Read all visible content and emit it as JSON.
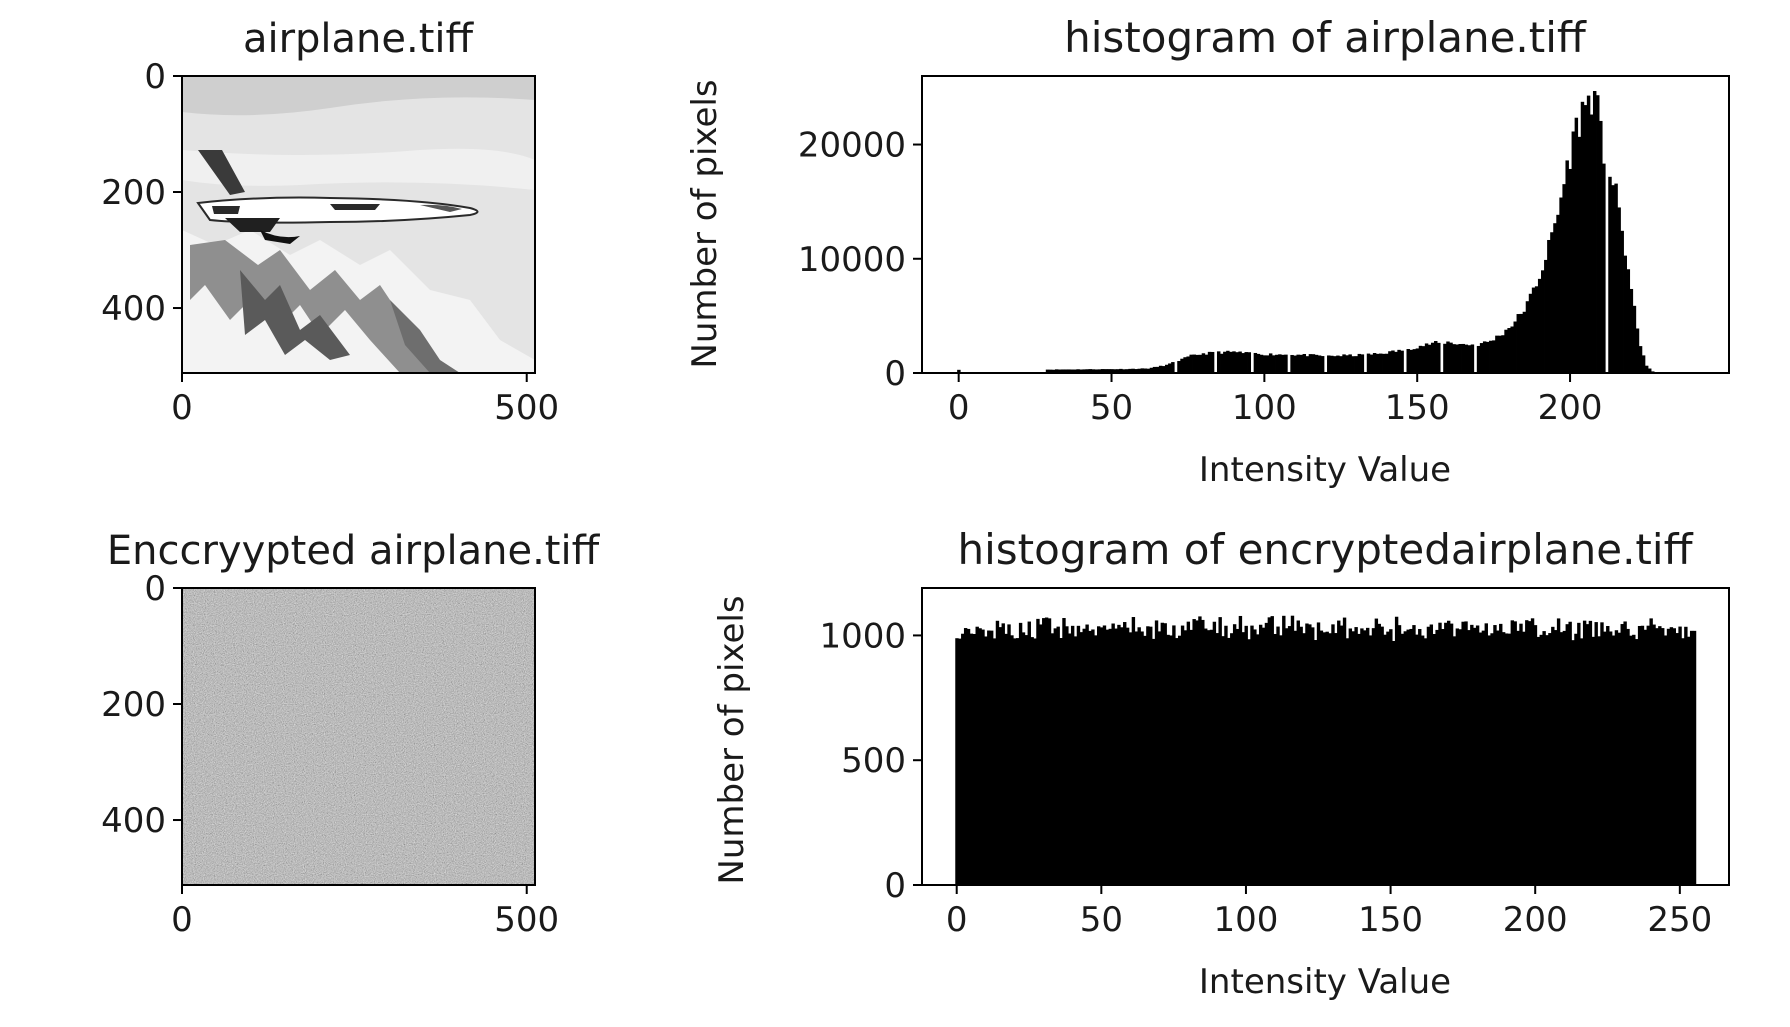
{
  "chart_data": [
    {
      "type": "image",
      "title": "airplane.tiff",
      "xlim": [
        0,
        512
      ],
      "ylim": [
        512,
        0
      ],
      "xticks": [
        0,
        500
      ],
      "yticks": [
        0,
        200,
        400
      ],
      "image_description": "grayscale photo of a fighter jet flying over snowy mountains"
    },
    {
      "type": "bar",
      "title": "histogram of airplane.tiff",
      "xlabel": "Intensity Value",
      "ylabel": "Number of pixels",
      "xlim": [
        -12,
        252
      ],
      "ylim": [
        0,
        26000
      ],
      "xticks": [
        0,
        50,
        100,
        150,
        200
      ],
      "yticks": [
        0,
        10000,
        20000
      ],
      "profile": [
        [
          0,
          300
        ],
        [
          1,
          0
        ],
        [
          28,
          0
        ],
        [
          29,
          300
        ],
        [
          55,
          350
        ],
        [
          62,
          400
        ],
        [
          64,
          500
        ],
        [
          68,
          700
        ],
        [
          72,
          1100
        ],
        [
          76,
          1500
        ],
        [
          80,
          1700
        ],
        [
          85,
          1800
        ],
        [
          90,
          1850
        ],
        [
          95,
          1700
        ],
        [
          100,
          1650
        ],
        [
          110,
          1600
        ],
        [
          120,
          1500
        ],
        [
          130,
          1550
        ],
        [
          138,
          1700
        ],
        [
          145,
          2000
        ],
        [
          150,
          2300
        ],
        [
          155,
          2600
        ],
        [
          160,
          2700
        ],
        [
          165,
          2500
        ],
        [
          170,
          2500
        ],
        [
          174,
          2800
        ],
        [
          178,
          3500
        ],
        [
          182,
          4500
        ],
        [
          186,
          6000
        ],
        [
          190,
          8500
        ],
        [
          193,
          11000
        ],
        [
          196,
          14000
        ],
        [
          199,
          18000
        ],
        [
          202,
          21500
        ],
        [
          205,
          23500
        ],
        [
          207,
          24300
        ],
        [
          209,
          22800
        ],
        [
          211,
          19000
        ],
        [
          213,
          17500
        ],
        [
          215,
          15500
        ],
        [
          217,
          12500
        ],
        [
          219,
          9000
        ],
        [
          221,
          5500
        ],
        [
          223,
          2500
        ],
        [
          225,
          600
        ],
        [
          227,
          150
        ],
        [
          228,
          0
        ]
      ],
      "gaps": [
        71,
        84,
        96,
        108,
        120,
        133,
        146,
        158,
        169,
        212
      ]
    },
    {
      "type": "image",
      "title": "Enccryypted  airplane.tiff",
      "xlim": [
        0,
        512
      ],
      "ylim": [
        512,
        0
      ],
      "xticks": [
        0,
        500
      ],
      "yticks": [
        0,
        200,
        400
      ],
      "image_description": "uniform gray noise"
    },
    {
      "type": "bar",
      "title": "histogram of encryptedairplane.tiff",
      "xlabel": "Intensity Value",
      "ylabel": "Number of pixels",
      "xlim": [
        -12,
        267
      ],
      "ylim": [
        0,
        1190
      ],
      "xticks": [
        0,
        50,
        100,
        150,
        200,
        250
      ],
      "yticks": [
        0,
        500,
        1000
      ],
      "value_range": [
        960,
        1130
      ],
      "mean_value": 1030,
      "bins": 256
    }
  ]
}
